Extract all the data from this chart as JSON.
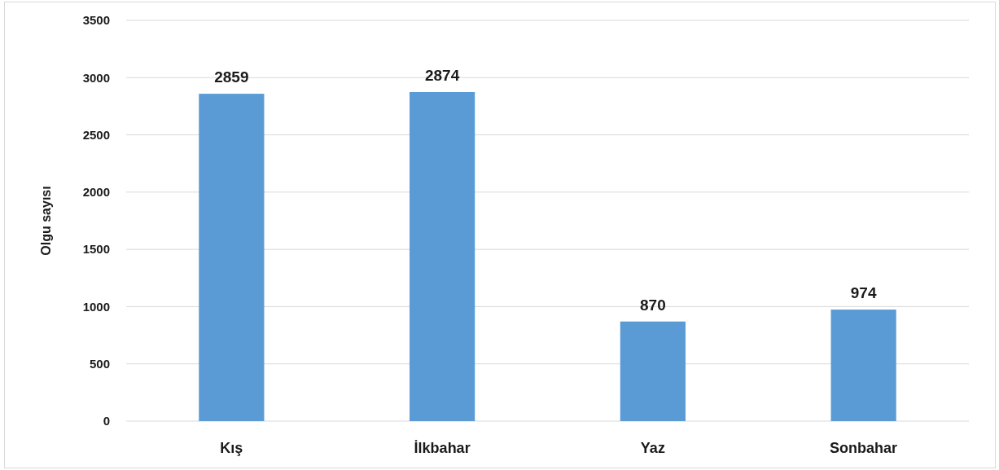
{
  "chart_data": {
    "type": "bar",
    "ylabel": "Olgu sayısı",
    "categories": [
      "Kış",
      "İlkbahar",
      "Yaz",
      "Sonbahar"
    ],
    "series": [
      {
        "color": "#5b9bd5",
        "values": [
          2859,
          2874,
          870,
          974
        ]
      }
    ],
    "ylim": [
      0,
      3500
    ],
    "yticks": [
      0,
      500,
      1000,
      1500,
      2000,
      2500,
      3000,
      3500
    ],
    "grid": "y",
    "data_labels": true
  }
}
